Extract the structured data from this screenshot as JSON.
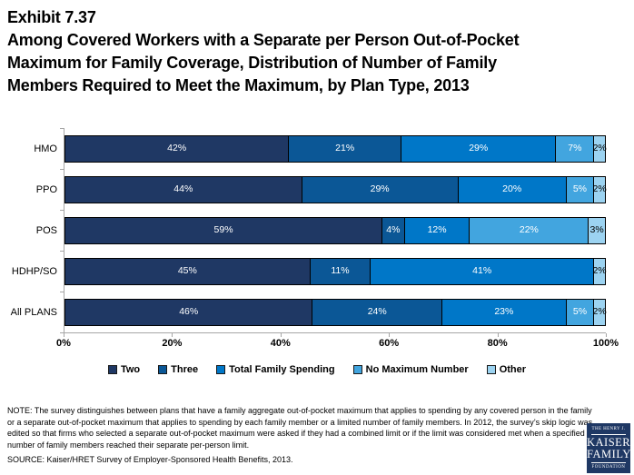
{
  "header": {
    "exhibit": "Exhibit 7.37",
    "title_lines": [
      "Among Covered Workers with a Separate per Person Out-of-Pocket",
      "Maximum for Family Coverage, Distribution of Number of Family",
      "Members Required to Meet the Maximum, by Plan Type, 2013"
    ]
  },
  "chart_data": {
    "type": "bar",
    "variant": "horizontal-stacked-100",
    "title": "Among Covered Workers with a Separate per Person Out-of-Pocket Maximum for Family Coverage, Distribution of Number of Family Members Required to Meet the Maximum, by Plan Type, 2013",
    "categories": [
      "HMO",
      "PPO",
      "POS",
      "HDHP/SO",
      "All PLANS"
    ],
    "series": [
      {
        "name": "Two",
        "color": "#1f3864",
        "label_color": "#ffffff",
        "values": [
          42,
          44,
          59,
          45,
          46
        ]
      },
      {
        "name": "Three",
        "color": "#0b5796",
        "label_color": "#ffffff",
        "values": [
          21,
          29,
          4,
          11,
          24
        ]
      },
      {
        "name": "Total Family Spending",
        "color": "#0077c8",
        "label_color": "#ffffff",
        "values": [
          29,
          20,
          12,
          41,
          23
        ]
      },
      {
        "name": "No Maximum Number",
        "color": "#42a5df",
        "label_color": "#ffffff",
        "values": [
          7,
          5,
          22,
          0,
          5
        ]
      },
      {
        "name": "Other",
        "color": "#9cd3f1",
        "label_color": "#000000",
        "values": [
          2,
          2,
          3,
          2,
          2
        ]
      }
    ],
    "x_ticks": [
      "0%",
      "20%",
      "40%",
      "60%",
      "80%",
      "100%"
    ],
    "xlim": [
      0,
      100
    ],
    "grid": false,
    "legend_position": "bottom",
    "axis_color": "#a6a6a6"
  },
  "footer": {
    "note": "NOTE: The survey distinguishes between plans that have a family aggregate out-of-pocket maximum that applies to spending by any covered person in the family or a separate out-of-pocket maximum that applies to spending by each family member or a limited number of family members.  In 2012, the survey’s skip logic was edited so that firms who selected a separate out-of-pocket maximum were asked if they had a combined limit or if the limit was considered met when a specified number of family members reached their separate per-person limit.",
    "source": "SOURCE:  Kaiser/HRET Survey of Employer-Sponsored Health Benefits, 2013."
  },
  "logo": {
    "line1": "THE HENRY J.",
    "line2": "KAISER",
    "line3": "FAMILY",
    "line4": "FOUNDATION"
  }
}
